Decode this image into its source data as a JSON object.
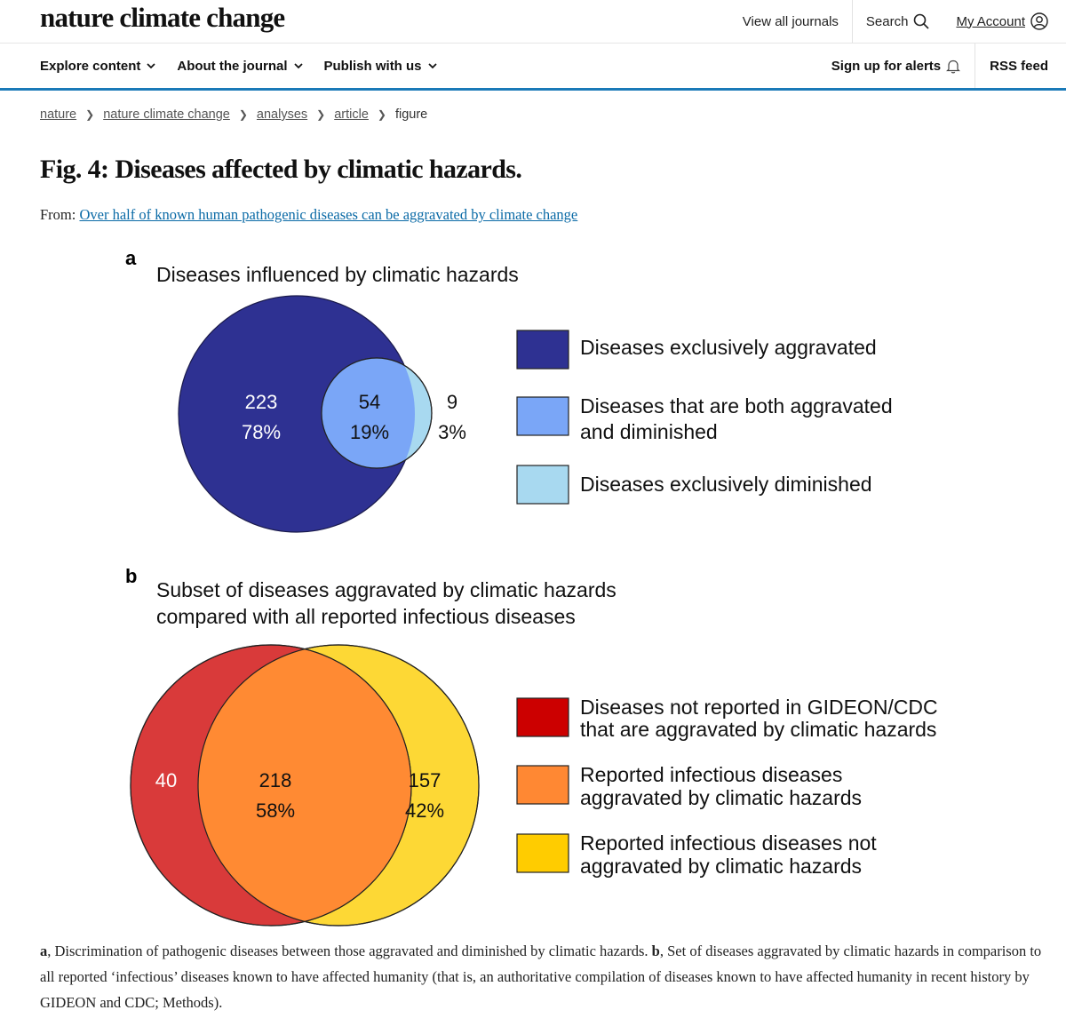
{
  "header": {
    "logo": "nature climate change",
    "view_all_journals": "View all journals",
    "search": "Search",
    "my_account": "My Account"
  },
  "nav": {
    "explore": "Explore content",
    "about": "About the journal",
    "publish": "Publish with us",
    "alerts": "Sign up for alerts",
    "rss": "RSS feed"
  },
  "breadcrumb": [
    "nature",
    "nature climate change",
    "analyses",
    "article",
    "figure"
  ],
  "figure": {
    "title": "Fig. 4: Diseases affected by climatic hazards.",
    "from_label": "From:",
    "from_link": "Over half of known human pathogenic diseases can be aggravated by climate change"
  },
  "chart_data": [
    {
      "type": "venn",
      "panel": "a",
      "title": "Diseases influenced by climatic hazards",
      "regions": [
        {
          "label": "Diseases exclusively aggravated",
          "count": "223",
          "percent": "78%",
          "color": "#2e3192"
        },
        {
          "label": "Diseases that are both aggravated and diminished",
          "count": "54",
          "percent": "19%",
          "color": "#7aa6f7"
        },
        {
          "label": "Diseases exclusively diminished",
          "count": "9",
          "percent": "3%",
          "color": "#a8d9f0"
        }
      ],
      "legend": {
        "entries": [
          {
            "lines": [
              "Diseases exclusively aggravated"
            ],
            "color": "#2e3192"
          },
          {
            "lines": [
              "Diseases that are both aggravated",
              "and diminished"
            ],
            "color": "#7aa6f7"
          },
          {
            "lines": [
              "Diseases exclusively diminished"
            ],
            "color": "#a8d9f0"
          }
        ]
      }
    },
    {
      "type": "venn",
      "panel": "b",
      "title": [
        "Subset of diseases aggravated by climatic hazards",
        "compared with all reported infectious diseases"
      ],
      "regions": [
        {
          "label": "Diseases not reported in GIDEON/CDC that are aggravated by climatic hazards",
          "count": "40",
          "percent": "",
          "color": "#d93a3a"
        },
        {
          "label": "Reported infectious diseases aggravated by climatic hazards",
          "count": "218",
          "percent": "58%",
          "color": "#ff8a33"
        },
        {
          "label": "Reported infectious diseases not aggravated by climatic hazards",
          "count": "157",
          "percent": "42%",
          "color": "#fdd835"
        }
      ],
      "legend": {
        "entries": [
          {
            "lines": [
              "Diseases not reported in GIDEON/CDC",
              "that are aggravated by climatic hazards"
            ],
            "color": "#cc0000"
          },
          {
            "lines": [
              "Reported infectious diseases",
              "aggravated by climatic hazards"
            ],
            "color": "#ff8833"
          },
          {
            "lines": [
              "Reported infectious diseases not",
              "aggravated by climatic hazards"
            ],
            "color": "#ffcc00"
          }
        ]
      }
    }
  ],
  "caption": {
    "a_label": "a",
    "a_text": ", Discrimination of pathogenic diseases between those aggravated and diminished by climatic hazards. ",
    "b_label": "b",
    "b_text": ", Set of diseases aggravated by climatic hazards in comparison to all reported ‘infectious’ diseases known to have affected humanity (that is, an authoritative compilation of diseases known to have affected humanity in recent history by GIDEON and CDC; Methods)."
  }
}
